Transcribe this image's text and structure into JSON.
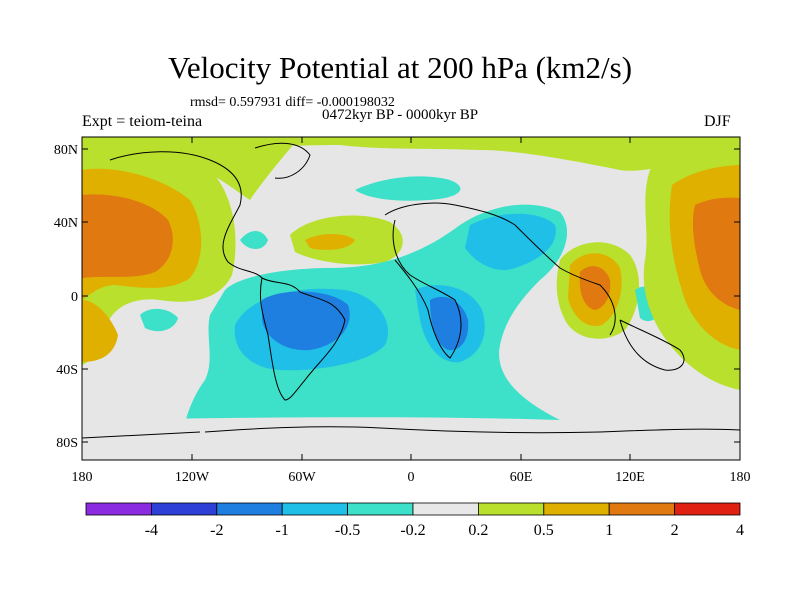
{
  "title": "Velocity Potential at 200 hPa (km2/s)",
  "stats_line": "rmsd= 0.597931 diff= -0.000198032",
  "period": "0472kyr BP - 0000kyr BP",
  "experiment": "Expt = teiom-teina",
  "season": "DJF",
  "lat_ticks": [
    "80N",
    "40N",
    "0",
    "40S",
    "80S"
  ],
  "lon_ticks": [
    "180",
    "120W",
    "60W",
    "0",
    "60E",
    "120E",
    "180"
  ],
  "colorbar": {
    "labels": [
      "-4",
      "-2",
      "-1",
      "-0.5",
      "-0.2",
      "0.2",
      "0.5",
      "1",
      "2",
      "4"
    ],
    "colors": [
      "#8a2be2",
      "#2d3fd6",
      "#1f7fe0",
      "#1fbfe8",
      "#3de0c8",
      "#e8e8e8",
      "#b8e02c",
      "#e0b000",
      "#e07a10",
      "#e02010"
    ]
  },
  "palette": {
    "neutral": "#e6e6e6",
    "green": "#b8e02c",
    "gold": "#e0b000",
    "orange": "#e07a10",
    "teal": "#3de0c8",
    "cyan": "#1fbfe8",
    "blue": "#1f7fe0"
  }
}
